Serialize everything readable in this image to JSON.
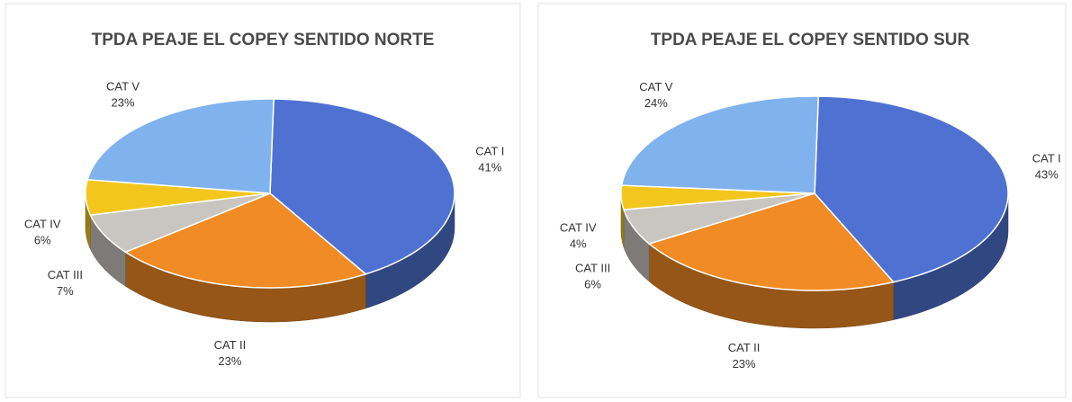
{
  "chart_data": [
    {
      "type": "pie",
      "title": "TPDA PEAJE EL COPEY SENTIDO NORTE",
      "categories": [
        "CAT I",
        "CAT II",
        "CAT III",
        "CAT IV",
        "CAT V"
      ],
      "values": [
        41,
        23,
        7,
        6,
        23
      ],
      "value_labels": [
        "41%",
        "23%",
        "7%",
        "6%",
        "23%"
      ],
      "colors": [
        "#4f72d2",
        "#f18b25",
        "#c9c5c0",
        "#f3c61e",
        "#80b2ee"
      ]
    },
    {
      "type": "pie",
      "title": "TPDA PEAJE  EL COPEY SENTIDO SUR",
      "categories": [
        "CAT I",
        "CAT II",
        "CAT III",
        "CAT IV",
        "CAT V"
      ],
      "values": [
        43,
        23,
        6,
        4,
        24
      ],
      "value_labels": [
        "43%",
        "23%",
        "6%",
        "4%",
        "24%"
      ],
      "colors": [
        "#4f72d2",
        "#f18b25",
        "#c9c5c0",
        "#f3c61e",
        "#80b2ee"
      ]
    }
  ]
}
